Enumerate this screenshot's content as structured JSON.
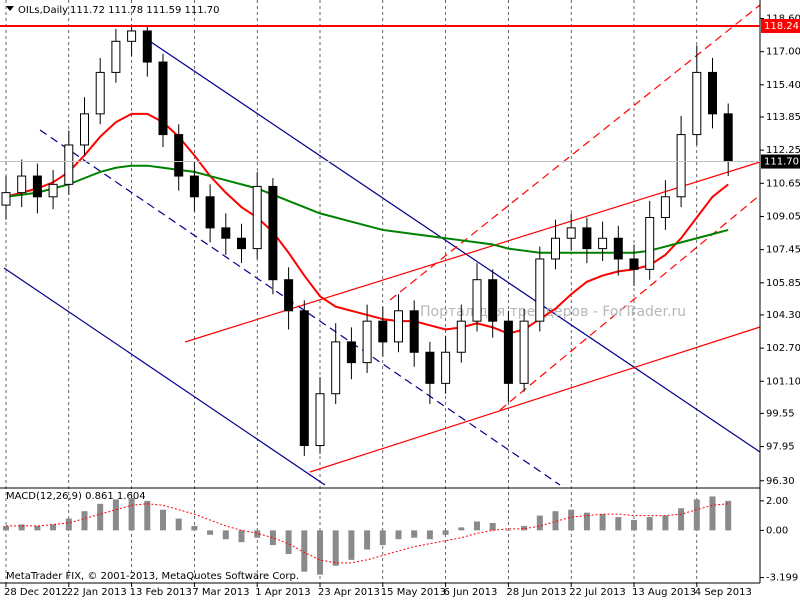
{
  "chart_data": [
    {
      "type": "candlestick",
      "title": "OILs,Daily",
      "subtitle": "111.72 111.78 111.59 111.70",
      "categories": [
        "28 Dec 2012",
        null,
        null,
        null,
        "22 Jan 2013",
        null,
        null,
        null,
        "13 Feb 2013",
        null,
        null,
        null,
        "7 Mar 2013",
        null,
        null,
        null,
        "1 Apr 2013",
        null,
        null,
        null,
        "23 Apr 2013",
        null,
        null,
        null,
        "15 May 2013",
        null,
        null,
        null,
        "6 Jun 2013",
        null,
        null,
        null,
        "28 Jun 2013",
        null,
        null,
        null,
        "22 Jul 2013",
        null,
        null,
        null,
        "13 Aug 2013",
        null,
        null,
        null,
        "4 Sep 2013",
        null,
        null
      ],
      "open": [
        109.6,
        110.2,
        111.0,
        110.0,
        110.6,
        112.5,
        114.0,
        116.0,
        117.5,
        118.0,
        116.5,
        113.0,
        111.0,
        110.0,
        108.5,
        108.0,
        107.5,
        110.5,
        106.0,
        104.5,
        98.0,
        100.5,
        103.0,
        102.0,
        104.0,
        103.0,
        104.5,
        102.5,
        101.0,
        102.5,
        104.0,
        106.0,
        104.0,
        101.0,
        104.0,
        107.0,
        108.0,
        108.5,
        107.5,
        108.0,
        107.0,
        106.5,
        109.0,
        110.0,
        113.0,
        116.0,
        114.0
      ],
      "high": [
        111.0,
        111.8,
        111.6,
        111.3,
        113.2,
        114.8,
        116.7,
        118.1,
        118.3,
        118.2,
        116.9,
        113.5,
        111.7,
        110.6,
        109.2,
        108.7,
        111.2,
        110.9,
        106.6,
        105.0,
        101.3,
        103.9,
        103.7,
        104.8,
        104.7,
        105.3,
        105.0,
        103.0,
        103.3,
        104.8,
        106.8,
        106.5,
        104.5,
        104.6,
        107.6,
        108.9,
        109.2,
        109.0,
        108.8,
        108.6,
        107.7,
        109.8,
        110.8,
        113.9,
        117.3,
        116.7,
        114.5
      ],
      "low": [
        108.9,
        109.5,
        109.2,
        109.4,
        110.1,
        112.0,
        113.5,
        115.5,
        116.8,
        115.8,
        112.4,
        110.3,
        109.3,
        107.8,
        107.2,
        106.8,
        107.0,
        105.3,
        103.6,
        97.5,
        97.6,
        100.0,
        101.2,
        101.5,
        102.3,
        102.5,
        101.8,
        100.0,
        100.5,
        102.0,
        103.5,
        103.2,
        100.1,
        100.6,
        103.5,
        106.5,
        107.4,
        106.8,
        106.9,
        106.2,
        105.7,
        106.0,
        108.4,
        109.5,
        112.5,
        113.3,
        111.0
      ],
      "close": [
        110.2,
        111.0,
        110.0,
        110.6,
        112.5,
        114.0,
        116.0,
        117.5,
        118.0,
        116.5,
        113.0,
        111.0,
        110.0,
        108.5,
        108.0,
        107.5,
        110.5,
        106.0,
        104.5,
        98.0,
        100.5,
        103.0,
        102.0,
        104.0,
        103.0,
        104.5,
        102.5,
        101.0,
        102.5,
        104.0,
        106.0,
        104.0,
        101.0,
        104.0,
        107.0,
        108.0,
        108.5,
        107.5,
        108.0,
        107.0,
        106.5,
        109.0,
        110.0,
        113.0,
        116.0,
        114.0,
        111.7
      ],
      "up_color": "#ffffff",
      "down_color": "#000000",
      "series": [
        {
          "color": "#ff0000",
          "values": [
            110.0,
            110.2,
            110.4,
            110.7,
            111.2,
            112.0,
            112.9,
            113.6,
            114.0,
            114.0,
            113.6,
            112.9,
            112.0,
            111.0,
            110.2,
            109.5,
            109.0,
            108.3,
            107.3,
            106.2,
            105.2,
            104.7,
            104.5,
            104.3,
            104.1,
            104.0,
            104.0,
            103.8,
            103.6,
            103.7,
            103.9,
            103.7,
            103.4,
            103.6,
            104.1,
            104.6,
            105.3,
            105.9,
            106.2,
            106.4,
            106.5,
            106.7,
            107.2,
            108.0,
            109.0,
            110.0,
            110.6
          ]
        },
        {
          "color": "#008000",
          "values": [
            110.0,
            110.1,
            110.2,
            110.4,
            110.6,
            110.9,
            111.2,
            111.4,
            111.5,
            111.5,
            111.4,
            111.3,
            111.2,
            111.0,
            110.8,
            110.6,
            110.4,
            110.1,
            109.8,
            109.5,
            109.2,
            109.0,
            108.8,
            108.6,
            108.4,
            108.3,
            108.2,
            108.1,
            108.0,
            107.9,
            107.8,
            107.7,
            107.5,
            107.4,
            107.3,
            107.3,
            107.3,
            107.3,
            107.3,
            107.3,
            107.3,
            107.4,
            107.6,
            107.8,
            108.0,
            108.2,
            108.4
          ]
        }
      ],
      "levels": [
        {
          "value": 118.24,
          "color": "#ff0000"
        },
        {
          "value": 111.7,
          "label": "111.70",
          "color": "#000000"
        }
      ],
      "ylim": [
        96.0,
        119.3
      ],
      "yticks": [
        {
          "value": 118.6,
          "label": "118.60"
        },
        {
          "value": 117,
          "label": "117.00"
        },
        {
          "value": 115.4,
          "label": "115.40"
        },
        113.85,
        112.25,
        110.65,
        109.05,
        107.45,
        105.85,
        {
          "value": 104.3,
          "label": "104.30"
        },
        {
          "value": 102.7,
          "label": "102.70"
        },
        {
          "value": 101.1,
          "label": "101.10"
        },
        99.55,
        97.95,
        {
          "value": 96.3,
          "label": "96.30"
        }
      ],
      "grid": true
    },
    {
      "type": "macd",
      "title": "MACD(12,26,9) 0.861 1.604",
      "series": [
        {
          "color": "#8a8a8a",
          "values": [
            0.3,
            0.4,
            0.3,
            0.4,
            0.8,
            1.3,
            1.8,
            2.1,
            2.2,
            2.0,
            1.4,
            0.8,
            0.3,
            -0.3,
            -0.6,
            -0.8,
            -0.5,
            -1.0,
            -1.6,
            -2.8,
            -3.0,
            -2.4,
            -2.0,
            -1.3,
            -1.0,
            -0.6,
            -0.5,
            -0.6,
            -0.3,
            0.2,
            0.6,
            0.5,
            0.0,
            0.3,
            1.0,
            1.3,
            1.4,
            1.2,
            1.1,
            0.9,
            0.7,
            0.9,
            1.0,
            1.5,
            2.1,
            2.3,
            2.0
          ]
        },
        {
          "color": "#ff0000",
          "values": [
            0.3,
            0.3,
            0.3,
            0.4,
            0.5,
            0.8,
            1.1,
            1.4,
            1.7,
            1.8,
            1.7,
            1.4,
            1.1,
            0.7,
            0.3,
            0.0,
            -0.2,
            -0.5,
            -0.9,
            -1.5,
            -2.0,
            -2.2,
            -2.2,
            -2.0,
            -1.7,
            -1.4,
            -1.1,
            -0.9,
            -0.7,
            -0.5,
            -0.2,
            0.0,
            0.1,
            0.1,
            0.3,
            0.6,
            0.9,
            1.0,
            1.1,
            1.1,
            1.0,
            1.0,
            1.0,
            1.1,
            1.4,
            1.7,
            1.8
          ]
        }
      ],
      "ylim": [
        -3.5,
        2.6
      ],
      "yticks": [
        {
          "value": 2,
          "label": "2.00"
        },
        {
          "value": 0,
          "label": "0.00"
        },
        -3.199
      ]
    }
  ],
  "footer": "MetaTrader FIX, © 2001-2013, MetaQuotes Software Corp.",
  "watermark": "Портал для трейдеров - ForTrader.ru"
}
